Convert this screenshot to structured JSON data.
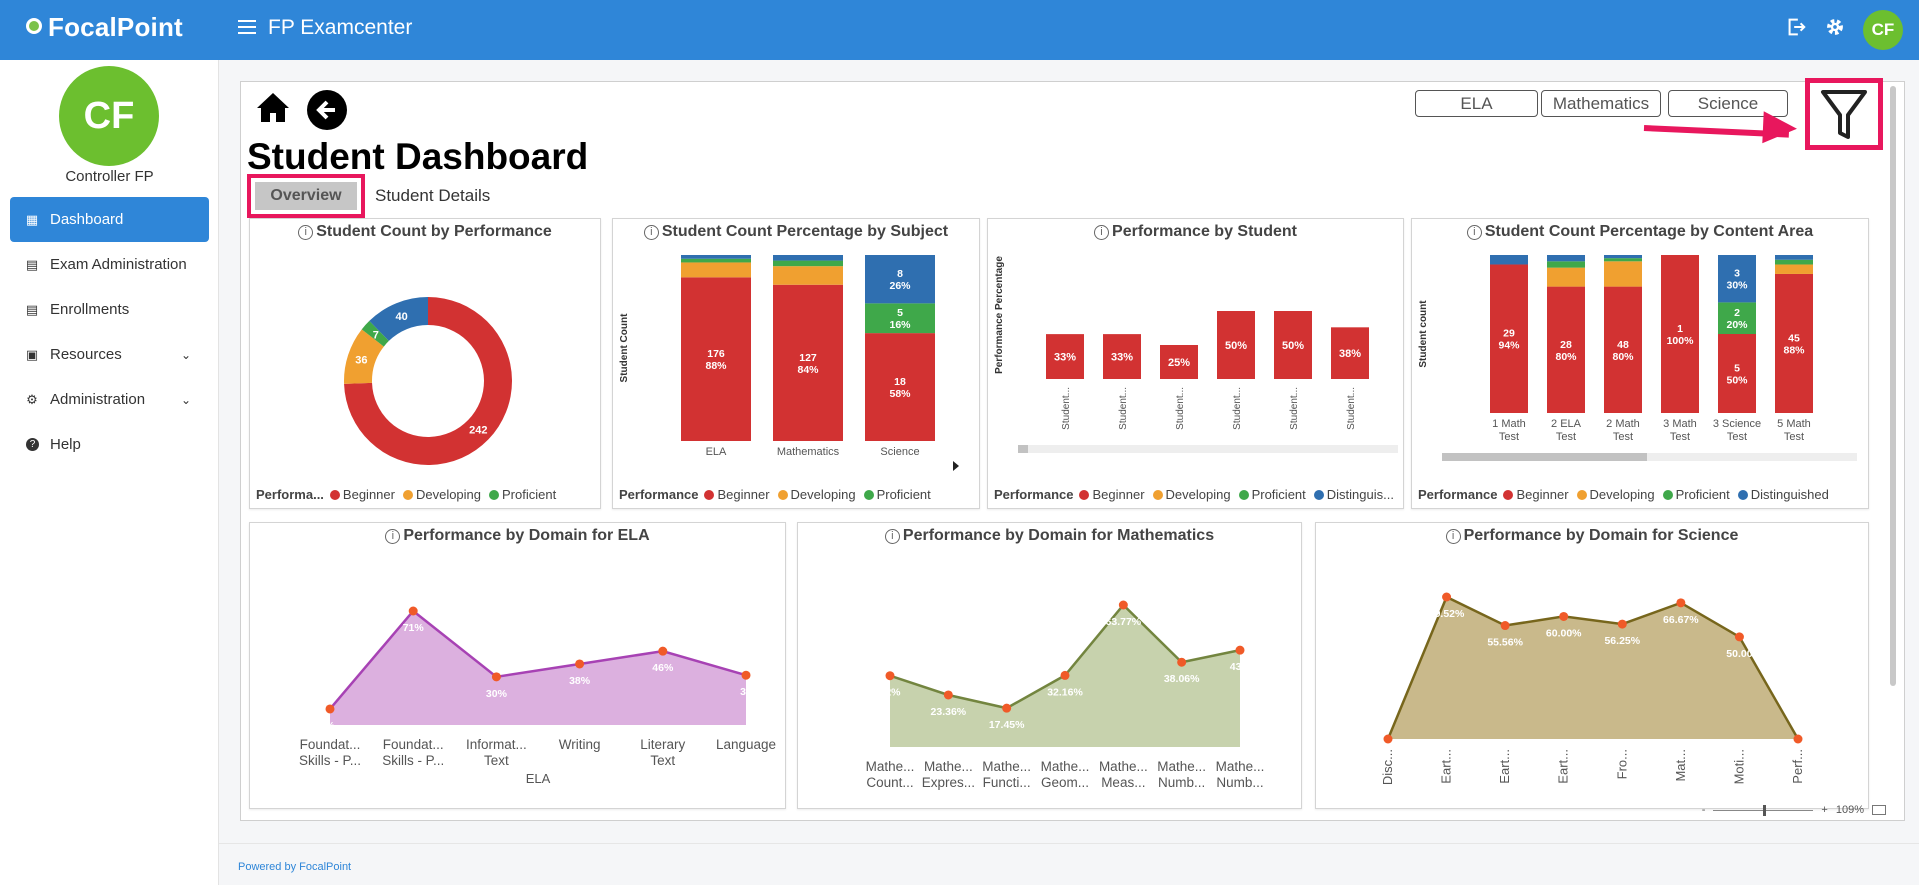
{
  "header": {
    "brand": "FocalPoint",
    "app_title": "FP Examcenter",
    "avatar_initials": "CF"
  },
  "sidebar": {
    "avatar_initials": "CF",
    "user_name": "Controller FP",
    "items": [
      {
        "label": "Dashboard",
        "icon": "dashboard-icon",
        "active": true
      },
      {
        "label": "Exam Administration",
        "icon": "list-icon"
      },
      {
        "label": "Enrollments",
        "icon": "list-icon"
      },
      {
        "label": "Resources",
        "icon": "clipboard-icon",
        "expandable": true
      },
      {
        "label": "Administration",
        "icon": "gear-icon",
        "expandable": true
      },
      {
        "label": "Help",
        "icon": "help-icon"
      }
    ]
  },
  "main": {
    "title": "Student Dashboard",
    "tabs": [
      "Overview",
      "Student Details"
    ],
    "subject_buttons": [
      "ELA",
      "Mathematics",
      "Science"
    ],
    "zoom": "109%"
  },
  "colors": {
    "beginner": "#d23232",
    "developing": "#f0a030",
    "proficient": "#3fa84a",
    "distinguished": "#2f6fb0",
    "highlight": "#e8175d",
    "brand": "#2f86d8"
  },
  "cards": {
    "count_by_perf": {
      "title": "Student Count by Performance",
      "legend": [
        "Performa...",
        "Beginner",
        "Developing",
        "Proficient"
      ],
      "chart_data": {
        "type": "pie",
        "labels": [
          "Beginner",
          "Developing",
          "Proficient",
          "Distinguished"
        ],
        "values": [
          242,
          36,
          7,
          40
        ]
      }
    },
    "pct_by_subject": {
      "title": "Student Count Percentage by Subject",
      "ylabel": "Student Count",
      "legend": [
        "Performance",
        "Beginner",
        "Developing",
        "Proficient"
      ],
      "chart_data": {
        "type": "bar",
        "stacked": true,
        "categories": [
          "ELA",
          "Mathematics",
          "Science"
        ],
        "series": [
          {
            "name": "Beginner",
            "percent": [
              88,
              84,
              58
            ],
            "labels": [
              "176\n88%",
              "127\n84%",
              "18\n58%"
            ]
          },
          {
            "name": "Developing",
            "percent": [
              8,
              10,
              0
            ]
          },
          {
            "name": "Proficient",
            "percent": [
              2,
              3,
              16
            ],
            "labels": [
              "",
              "",
              "5\n16%"
            ]
          },
          {
            "name": "Distinguished",
            "percent": [
              2,
              3,
              26
            ],
            "labels": [
              "",
              "",
              "8\n26%"
            ]
          }
        ]
      }
    },
    "perf_by_student": {
      "title": "Performance by Student",
      "ylabel": "Performance Percentage",
      "legend": [
        "Performance",
        "Beginner",
        "Developing",
        "Proficient",
        "Distinguis..."
      ],
      "chart_data": {
        "type": "bar",
        "categories": [
          "Student...",
          "Student...",
          "Student...",
          "Student...",
          "Student...",
          "Student..."
        ],
        "values": [
          33,
          33,
          25,
          50,
          50,
          38
        ],
        "labels": [
          "33%",
          "33%",
          "25%",
          "50%",
          "50%",
          "38%"
        ]
      }
    },
    "pct_by_content": {
      "title": "Student Count Percentage by Content Area",
      "ylabel": "Student count",
      "legend": [
        "Performance",
        "Beginner",
        "Developing",
        "Proficient",
        "Distinguished"
      ],
      "chart_data": {
        "type": "bar",
        "stacked": true,
        "categories": [
          "1 Math\nTest",
          "2 ELA\nTest",
          "2 Math\nTest",
          "3 Math\nTest",
          "3 Science\nTest",
          "5 Math\nTest"
        ],
        "series": [
          {
            "name": "Beginner",
            "percent": [
              94,
              80,
              80,
              100,
              50,
              88
            ],
            "labels": [
              "29\n94%",
              "28\n80%",
              "48\n80%",
              "1\n100%",
              "5\n50%",
              "45\n88%"
            ]
          },
          {
            "name": "Developing",
            "percent": [
              0,
              12,
              16,
              0,
              0,
              6
            ]
          },
          {
            "name": "Proficient",
            "percent": [
              0,
              4,
              2,
              0,
              20,
              3
            ],
            "labels": [
              "",
              "",
              "",
              "",
              "2\n20%",
              ""
            ]
          },
          {
            "name": "Distinguished",
            "percent": [
              6,
              4,
              2,
              0,
              30,
              3
            ],
            "labels": [
              "",
              "",
              "",
              "",
              "3\n30%",
              ""
            ]
          }
        ]
      }
    },
    "domain_ela": {
      "title": "Performance by Domain for ELA",
      "xlabel": "ELA",
      "chart_data": {
        "type": "area",
        "categories": [
          "Foundat...\nSkills - P...",
          "Foundat...\nSkills - P...",
          "Informat...\nText",
          "Writing",
          "Literary\nText",
          "Language"
        ],
        "values": [
          10,
          71,
          30,
          38,
          46,
          31
        ],
        "labels": [
          "%",
          "71%",
          "30%",
          "38%",
          "46%",
          "31"
        ]
      }
    },
    "domain_math": {
      "title": "Performance by Domain for Mathematics",
      "chart_data": {
        "type": "area",
        "categories": [
          "Mathe...\nCount...",
          "Mathe...\nExpres...",
          "Mathe...\nFuncti...",
          "Mathe...\nGeom...",
          "Mathe...\nMeas...",
          "Mathe...\nNumb...",
          "Mathe...\nNumb..."
        ],
        "values": [
          32,
          23.36,
          17.45,
          32.16,
          63.77,
          38.06,
          43.5
        ],
        "labels": [
          "32%",
          "23.36%",
          "17.45%",
          "32.16%",
          "63.77%",
          "38.06%",
          "43.5"
        ]
      }
    },
    "domain_science": {
      "title": "Performance by Domain for Science",
      "chart_data": {
        "type": "area",
        "categories": [
          "Disc...",
          "Eart...",
          "Eart...",
          "Eart...",
          "Fro...",
          "Mat...",
          "Moti...",
          "Perf..."
        ],
        "values": [
          0,
          69.52,
          55.56,
          60.0,
          56.25,
          66.67,
          50.0,
          0
        ],
        "labels": [
          "0%",
          "69.52%",
          "55.56%",
          "60.00%",
          "56.25%",
          "66.67%",
          "50.00",
          "0.0"
        ]
      }
    }
  }
}
